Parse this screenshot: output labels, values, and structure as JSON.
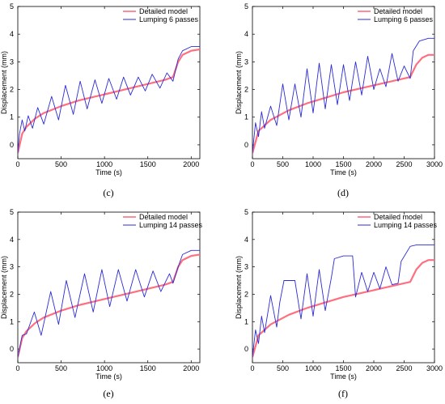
{
  "colors": {
    "detailed": "#ff6f7f",
    "lumping": "#2b2bd6",
    "axis": "#000000"
  },
  "chart_data": [
    {
      "type": "line",
      "caption": "(c)",
      "xlabel": "Time (s)",
      "ylabel": "Displacement (mm)",
      "xlim": [
        0,
        2100
      ],
      "ylim": [
        -0.5,
        5
      ],
      "xticks": [
        0,
        500,
        1000,
        1500,
        2000
      ],
      "yticks": [
        0,
        1,
        2,
        3,
        4,
        5
      ],
      "legend": "top-right",
      "series": [
        {
          "name": "Detailed model",
          "color": "#ff6f7f",
          "x": [
            0,
            50,
            100,
            200,
            300,
            500,
            700,
            900,
            1100,
            1300,
            1500,
            1700,
            1790,
            1850,
            1900,
            2000,
            2100
          ],
          "y": [
            -0.3,
            0.4,
            0.65,
            0.95,
            1.15,
            1.4,
            1.6,
            1.75,
            1.9,
            2.05,
            2.2,
            2.35,
            2.45,
            3.0,
            3.25,
            3.4,
            3.45
          ]
        },
        {
          "name": "Lumping 6 passes",
          "color": "#2b2bd6",
          "x": [
            0,
            20,
            50,
            80,
            120,
            170,
            230,
            300,
            390,
            470,
            550,
            640,
            720,
            800,
            890,
            970,
            1050,
            1140,
            1220,
            1300,
            1390,
            1470,
            1550,
            1640,
            1720,
            1790,
            1850,
            1900,
            2000,
            2100
          ],
          "y": [
            -0.3,
            0.4,
            0.9,
            0.5,
            1.05,
            0.6,
            1.35,
            0.75,
            1.75,
            0.9,
            2.15,
            1.1,
            2.3,
            1.3,
            2.35,
            1.5,
            2.4,
            1.65,
            2.45,
            1.8,
            2.45,
            1.95,
            2.55,
            2.05,
            2.6,
            2.3,
            3.1,
            3.4,
            3.55,
            3.55
          ]
        }
      ]
    },
    {
      "type": "line",
      "caption": "(d)",
      "xlabel": "Time (s)",
      "ylabel": "Displacement (mm)",
      "xlim": [
        0,
        3000
      ],
      "ylim": [
        -0.5,
        5
      ],
      "xticks": [
        0,
        500,
        1000,
        1500,
        2000,
        2500,
        3000
      ],
      "yticks": [
        0,
        1,
        2,
        3,
        4,
        5
      ],
      "legend": "top-right",
      "series": [
        {
          "name": "Detailed model",
          "color": "#ff6f7f",
          "x": [
            0,
            100,
            300,
            600,
            900,
            1200,
            1500,
            1800,
            2100,
            2400,
            2600,
            2700,
            2800,
            2900,
            3000
          ],
          "y": [
            -0.3,
            0.5,
            0.9,
            1.25,
            1.5,
            1.7,
            1.9,
            2.05,
            2.2,
            2.35,
            2.45,
            2.9,
            3.15,
            3.25,
            3.25
          ]
        },
        {
          "name": "Lumping 6 passes",
          "color": "#2b2bd6",
          "x": [
            0,
            50,
            100,
            150,
            200,
            300,
            400,
            500,
            600,
            700,
            800,
            900,
            1000,
            1100,
            1200,
            1300,
            1400,
            1500,
            1600,
            1700,
            1800,
            1900,
            2000,
            2100,
            2200,
            2300,
            2400,
            2500,
            2600,
            2650,
            2750,
            2900,
            3000
          ],
          "y": [
            -0.3,
            0.8,
            0.3,
            1.2,
            0.6,
            1.4,
            0.7,
            2.2,
            0.9,
            2.2,
            1.0,
            2.75,
            1.15,
            2.95,
            1.3,
            2.9,
            1.45,
            2.9,
            1.6,
            3.0,
            1.8,
            3.2,
            2.0,
            2.75,
            2.1,
            3.3,
            2.3,
            2.85,
            2.4,
            3.4,
            3.75,
            3.85,
            3.85
          ]
        }
      ]
    },
    {
      "type": "line",
      "caption": "(e)",
      "xlabel": "Time (s)",
      "ylabel": "Displacement (mm)",
      "xlim": [
        0,
        2100
      ],
      "ylim": [
        -0.5,
        5
      ],
      "xticks": [
        0,
        500,
        1000,
        1500,
        2000
      ],
      "yticks": [
        0,
        1,
        2,
        3,
        4,
        5
      ],
      "legend": "top-right",
      "series": [
        {
          "name": "Detailed model",
          "color": "#ff6f7f",
          "x": [
            0,
            50,
            100,
            200,
            300,
            500,
            700,
            900,
            1100,
            1300,
            1500,
            1700,
            1790,
            1850,
            1900,
            2000,
            2100
          ],
          "y": [
            -0.3,
            0.4,
            0.65,
            0.95,
            1.15,
            1.4,
            1.6,
            1.75,
            1.9,
            2.05,
            2.2,
            2.35,
            2.45,
            3.0,
            3.25,
            3.4,
            3.45
          ]
        },
        {
          "name": "Lumping 14 passes",
          "color": "#2b2bd6",
          "x": [
            0,
            50,
            100,
            190,
            270,
            380,
            470,
            560,
            660,
            770,
            870,
            970,
            1060,
            1160,
            1260,
            1360,
            1460,
            1560,
            1650,
            1750,
            1790,
            1850,
            1900,
            2000,
            2100
          ],
          "y": [
            -0.3,
            0.5,
            0.55,
            1.35,
            0.5,
            2.1,
            0.9,
            2.5,
            1.15,
            2.75,
            1.35,
            2.9,
            1.55,
            2.9,
            1.75,
            2.9,
            1.9,
            2.85,
            2.1,
            2.75,
            2.4,
            3.0,
            3.45,
            3.6,
            3.6
          ]
        }
      ]
    },
    {
      "type": "line",
      "caption": "(f)",
      "xlabel": "Time (s)",
      "ylabel": "Displacement (mm)",
      "xlim": [
        0,
        3000
      ],
      "ylim": [
        -0.5,
        5
      ],
      "xticks": [
        0,
        500,
        1000,
        1500,
        2000,
        2500,
        3000
      ],
      "yticks": [
        0,
        1,
        2,
        3,
        4,
        5
      ],
      "legend": "top-right",
      "series": [
        {
          "name": "Detailed model",
          "color": "#ff6f7f",
          "x": [
            0,
            100,
            300,
            600,
            900,
            1200,
            1500,
            1800,
            2100,
            2400,
            2600,
            2700,
            2800,
            2900,
            3000
          ],
          "y": [
            -0.3,
            0.5,
            0.9,
            1.25,
            1.5,
            1.7,
            1.9,
            2.05,
            2.2,
            2.35,
            2.45,
            2.9,
            3.15,
            3.25,
            3.25
          ]
        },
        {
          "name": "Lumping 14 passes",
          "color": "#2b2bd6",
          "x": [
            0,
            50,
            100,
            150,
            200,
            300,
            400,
            450,
            520,
            700,
            800,
            900,
            1000,
            1100,
            1200,
            1300,
            1350,
            1500,
            1650,
            1700,
            1800,
            1900,
            2000,
            2100,
            2200,
            2300,
            2400,
            2450,
            2600,
            2700,
            2800,
            3000
          ],
          "y": [
            -0.3,
            0.7,
            0.2,
            1.2,
            0.6,
            1.95,
            0.8,
            1.7,
            2.5,
            2.5,
            1.1,
            2.75,
            1.2,
            2.9,
            1.4,
            2.6,
            3.3,
            3.4,
            3.4,
            1.9,
            2.8,
            2.1,
            2.8,
            2.2,
            3.0,
            2.35,
            2.4,
            3.2,
            3.75,
            3.8,
            3.8,
            3.8
          ]
        }
      ]
    }
  ]
}
